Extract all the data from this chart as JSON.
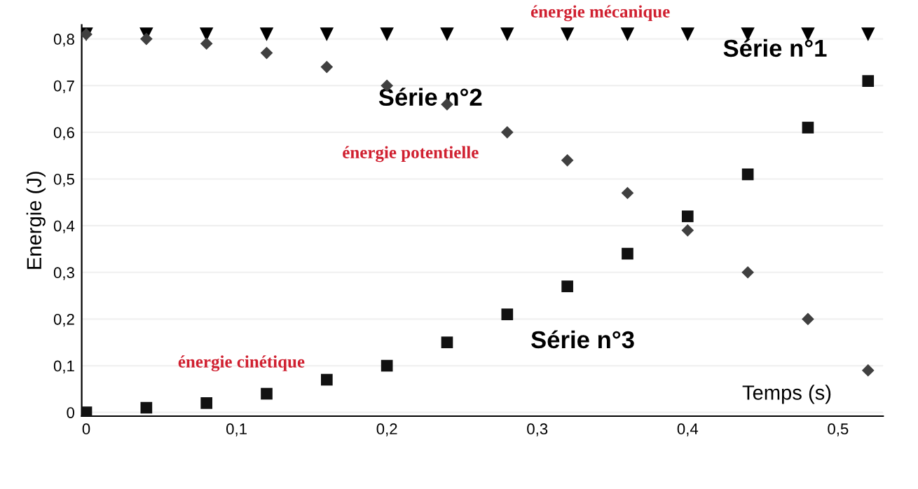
{
  "chart_data": {
    "type": "scatter",
    "xlabel": "Temps (s)",
    "ylabel": "Energie (J)",
    "x": [
      0,
      0.04,
      0.08,
      0.12,
      0.16,
      0.2,
      0.24,
      0.28,
      0.32,
      0.36,
      0.4,
      0.44,
      0.48,
      0.52
    ],
    "series": [
      {
        "name": "Série n°1",
        "color": "#000000",
        "marker": "triangle",
        "values": [
          0.81,
          0.81,
          0.81,
          0.81,
          0.81,
          0.81,
          0.81,
          0.81,
          0.81,
          0.81,
          0.81,
          0.81,
          0.81,
          0.81
        ]
      },
      {
        "name": "Série n°2",
        "color": "#404040",
        "marker": "diamond",
        "values": [
          0.81,
          0.8,
          0.79,
          0.77,
          0.74,
          0.7,
          0.66,
          0.6,
          0.54,
          0.47,
          0.39,
          0.3,
          0.2,
          0.09
        ]
      },
      {
        "name": "Série n°3",
        "color": "#111111",
        "marker": "square",
        "values": [
          0,
          0.01,
          0.02,
          0.04,
          0.07,
          0.1,
          0.15,
          0.21,
          0.27,
          0.34,
          0.42,
          0.51,
          0.61,
          0.71
        ]
      }
    ],
    "annotations": [
      "énergie mécanique",
      "énergie potentielle",
      "énergie cinétique"
    ],
    "xlim": [
      -0.003,
      0.53
    ],
    "ylim": [
      -0.008,
      0.83
    ],
    "xticks": [
      {
        "value": 0,
        "label": "0"
      },
      {
        "value": 0.1,
        "label": "0,1"
      },
      {
        "value": 0.2,
        "label": "0,2"
      },
      {
        "value": 0.3,
        "label": "0,3"
      },
      {
        "value": 0.4,
        "label": "0,4"
      },
      {
        "value": 0.5,
        "label": "0,5"
      }
    ],
    "yticks": [
      {
        "value": 0,
        "label": "0"
      },
      {
        "value": 0.1,
        "label": "0,1"
      },
      {
        "value": 0.2,
        "label": "0,2"
      },
      {
        "value": 0.3,
        "label": "0,3"
      },
      {
        "value": 0.4,
        "label": "0,4"
      },
      {
        "value": 0.5,
        "label": "0,5"
      },
      {
        "value": 0.6,
        "label": "0,6"
      },
      {
        "value": 0.7,
        "label": "0,7"
      },
      {
        "value": 0.8,
        "label": "0,8"
      }
    ],
    "grid": "y",
    "legend": false
  }
}
